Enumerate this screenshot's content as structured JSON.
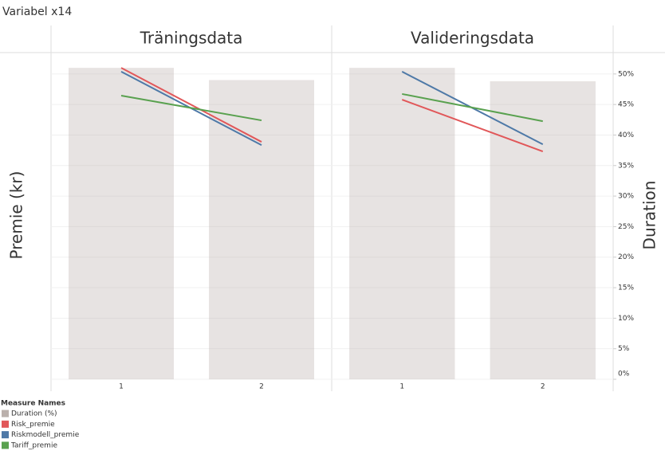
{
  "title": "Variabel x14",
  "y_label": "Premie (kr)",
  "y2_label": "Duration",
  "legend_title": "Measure Names",
  "chart_data": [
    {
      "type": "bar-line",
      "title": "Träningsdata",
      "categories": [
        "1",
        "2"
      ],
      "ylim": [
        0,
        12
      ],
      "y2lim": [
        0,
        53.5
      ],
      "y2ticks": [
        {
          "value": 0,
          "label": "0%"
        },
        {
          "value": 5,
          "label": "5%"
        },
        {
          "value": 10,
          "label": "10%"
        },
        {
          "value": 15,
          "label": "15%"
        },
        {
          "value": 20,
          "label": "20%"
        },
        {
          "value": 25,
          "label": "25%"
        },
        {
          "value": 30,
          "label": "30%"
        },
        {
          "value": 35,
          "label": "35%"
        },
        {
          "value": 40,
          "label": "40%"
        },
        {
          "value": 45,
          "label": "45%"
        },
        {
          "value": 50,
          "label": "50%"
        }
      ],
      "grid": true,
      "series": [
        {
          "name": "Duration (%)",
          "color": "#bab0ac",
          "axis": "y2",
          "values": [
            51.0,
            49.0
          ]
        },
        {
          "name": "Risk_premie",
          "color": "#e15759",
          "values": [
            11.44,
            8.72
          ]
        },
        {
          "name": "Riskmodell_premie",
          "color": "#4e79a7",
          "values": [
            11.3,
            8.6
          ]
        },
        {
          "name": "Tariff_premie",
          "color": "#59a14f",
          "values": [
            10.42,
            9.51
          ]
        }
      ]
    },
    {
      "type": "bar-line",
      "title": "Valideringsdata",
      "categories": [
        "1",
        "2"
      ],
      "ylim": [
        0,
        12
      ],
      "y2lim": [
        0,
        53.5
      ],
      "y2ticks": [
        {
          "value": 0,
          "label": "0%"
        },
        {
          "value": 5,
          "label": "5%"
        },
        {
          "value": 10,
          "label": "10%"
        },
        {
          "value": 15,
          "label": "15%"
        },
        {
          "value": 20,
          "label": "20%"
        },
        {
          "value": 25,
          "label": "25%"
        },
        {
          "value": 30,
          "label": "30%"
        },
        {
          "value": 35,
          "label": "35%"
        },
        {
          "value": 40,
          "label": "40%"
        },
        {
          "value": 45,
          "label": "45%"
        },
        {
          "value": 50,
          "label": "50%"
        }
      ],
      "grid": true,
      "series": [
        {
          "name": "Duration (%)",
          "color": "#bab0ac",
          "axis": "y2",
          "values": [
            51.0,
            48.8
          ]
        },
        {
          "name": "Risk_premie",
          "color": "#e15759",
          "values": [
            10.27,
            8.37
          ]
        },
        {
          "name": "Riskmodell_premie",
          "color": "#4e79a7",
          "values": [
            11.3,
            8.63
          ]
        },
        {
          "name": "Tariff_premie",
          "color": "#59a14f",
          "values": [
            10.48,
            9.48
          ]
        }
      ]
    }
  ]
}
